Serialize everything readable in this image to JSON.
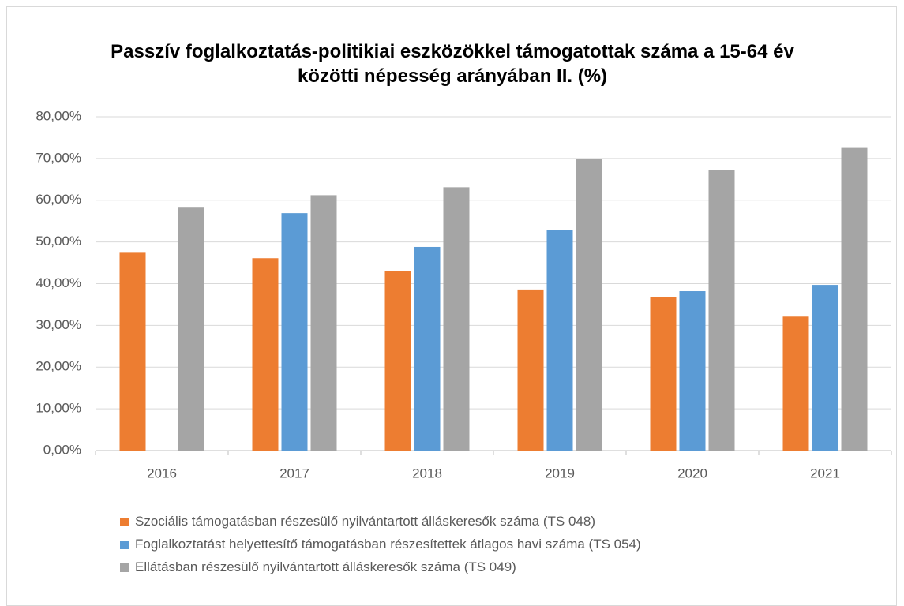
{
  "chart_data": {
    "type": "bar",
    "title": "Passzív foglalkoztatás-politikiai eszközökkel támogatottak száma a 15-64 év közötti népesség arányában II. (%)",
    "categories": [
      "2016",
      "2017",
      "2018",
      "2019",
      "2020",
      "2021"
    ],
    "series": [
      {
        "name": "Szociális támogatásban részesülő nyilvántartott álláskeresők száma (TS 048)",
        "color": "#ed7d31",
        "values": [
          47.4,
          46.1,
          43.1,
          38.6,
          36.7,
          32.1
        ]
      },
      {
        "name": "Foglalkoztatást helyettesítő támogatásban részesítettek átlagos havi száma (TS 054)",
        "color": "#5b9bd5",
        "values": [
          null,
          56.9,
          48.8,
          52.9,
          38.2,
          39.7
        ]
      },
      {
        "name": "Ellátásban részesülő nyilvántartott álláskeresők száma (TS 049)",
        "color": "#a5a5a5",
        "values": [
          58.4,
          61.2,
          63.1,
          69.8,
          67.3,
          72.7
        ]
      }
    ],
    "ylim": [
      0,
      80
    ],
    "yticks": [
      {
        "value": 0,
        "label": "0,00%"
      },
      {
        "value": 10,
        "label": "10,00%"
      },
      {
        "value": 20,
        "label": "20,00%"
      },
      {
        "value": 30,
        "label": "30,00%"
      },
      {
        "value": 40,
        "label": "40,00%"
      },
      {
        "value": 50,
        "label": "50,00%"
      },
      {
        "value": 60,
        "label": "60,00%"
      },
      {
        "value": 70,
        "label": "70,00%"
      },
      {
        "value": 80,
        "label": "80,00%"
      }
    ],
    "grid": true,
    "legend": "bottom"
  }
}
